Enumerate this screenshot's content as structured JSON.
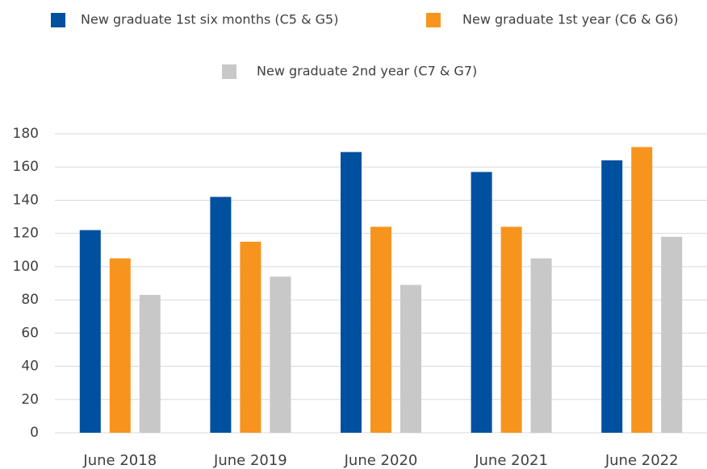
{
  "chart_data": {
    "type": "bar",
    "categories": [
      "June 2018",
      "June 2019",
      "June 2020",
      "June 2021",
      "June 2022"
    ],
    "series": [
      {
        "name": "New graduate 1st six months (C5 & G5)",
        "color": "#0050a0",
        "values": [
          122,
          142,
          169,
          157,
          164
        ]
      },
      {
        "name": "New graduate 1st year (C6 & G6)",
        "color": "#f7941d",
        "values": [
          105,
          115,
          124,
          124,
          172
        ]
      },
      {
        "name": "New graduate 2nd year (C7 & G7)",
        "color": "#c8c8c8",
        "values": [
          83,
          94,
          89,
          105,
          118
        ]
      }
    ],
    "ylim": [
      0,
      180
    ],
    "yticks": [
      0,
      20,
      40,
      60,
      80,
      100,
      120,
      140,
      160,
      180
    ],
    "grid": true,
    "legend": "top"
  }
}
